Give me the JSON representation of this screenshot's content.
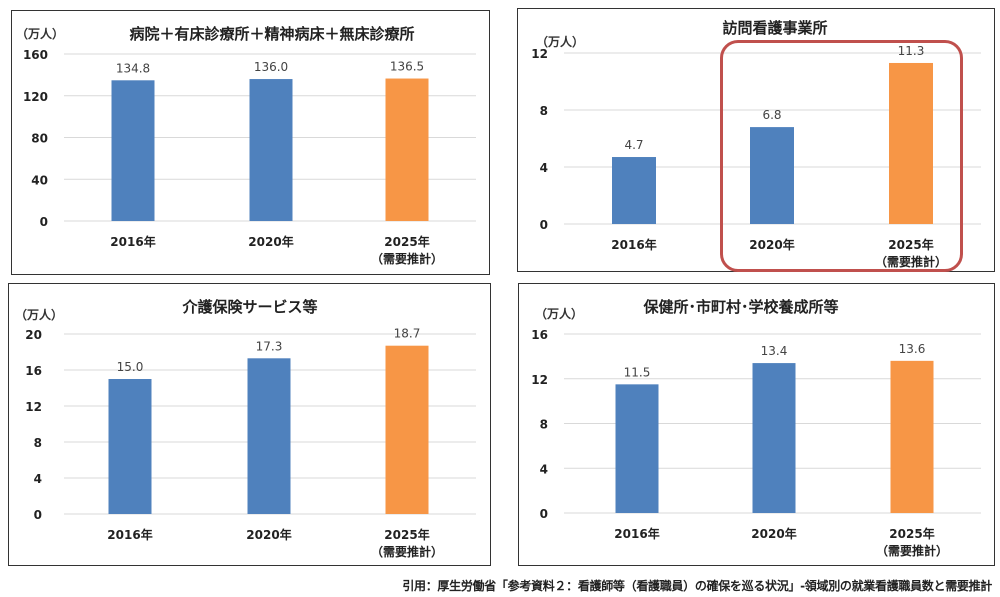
{
  "chart_data": [
    {
      "type": "bar",
      "title": "病院＋有床診療所＋精神病床＋無床診療所",
      "ylabel": "（万人）",
      "categories": [
        "2016年",
        "2020年",
        "2025年"
      ],
      "category_sublabels": [
        "",
        "",
        "（需要推計）"
      ],
      "values": [
        134.8,
        136.0,
        136.5
      ],
      "value_labels": [
        "134.8",
        "136.0",
        "136.5"
      ],
      "bar_colors": [
        "#4f81bd",
        "#4f81bd",
        "#f79646"
      ],
      "ylim": [
        0,
        160
      ],
      "yticks": [
        "0",
        "40",
        "80",
        "120",
        "160"
      ],
      "grid": true
    },
    {
      "type": "bar",
      "title": "訪問看護事業所",
      "ylabel": "（万人）",
      "categories": [
        "2016年",
        "2020年",
        "2025年"
      ],
      "category_sublabels": [
        "",
        "",
        "（需要推計）"
      ],
      "values": [
        4.7,
        6.8,
        11.3
      ],
      "value_labels": [
        "4.7",
        "6.8",
        "11.3"
      ],
      "bar_colors": [
        "#4f81bd",
        "#4f81bd",
        "#f79646"
      ],
      "ylim": [
        0,
        12
      ],
      "yticks": [
        "0",
        "4",
        "8",
        "12"
      ],
      "grid": true,
      "highlight_color": "#c0504d"
    },
    {
      "type": "bar",
      "title": "介護保険サービス等",
      "ylabel": "（万人）",
      "categories": [
        "2016年",
        "2020年",
        "2025年"
      ],
      "category_sublabels": [
        "",
        "",
        "（需要推計）"
      ],
      "values": [
        15.0,
        17.3,
        18.7
      ],
      "value_labels": [
        "15.0",
        "17.3",
        "18.7"
      ],
      "bar_colors": [
        "#4f81bd",
        "#4f81bd",
        "#f79646"
      ],
      "ylim": [
        0,
        20
      ],
      "yticks": [
        "0",
        "4",
        "8",
        "12",
        "16",
        "20"
      ],
      "grid": true
    },
    {
      "type": "bar",
      "title": "保健所･市町村･学校養成所等",
      "ylabel": "（万人）",
      "categories": [
        "2016年",
        "2020年",
        "2025年"
      ],
      "category_sublabels": [
        "",
        "",
        "（需要推計）"
      ],
      "values": [
        11.5,
        13.4,
        13.6
      ],
      "value_labels": [
        "11.5",
        "13.4",
        "13.6"
      ],
      "bar_colors": [
        "#4f81bd",
        "#4f81bd",
        "#f79646"
      ],
      "ylim": [
        0,
        16
      ],
      "yticks": [
        "0",
        "4",
        "8",
        "12",
        "16"
      ],
      "grid": true
    }
  ],
  "citation": "引用：厚生労働省「参考資料２：看護師等（看護職員）の確保を巡る状況」-領域別の就業看護職員数と需要推計"
}
